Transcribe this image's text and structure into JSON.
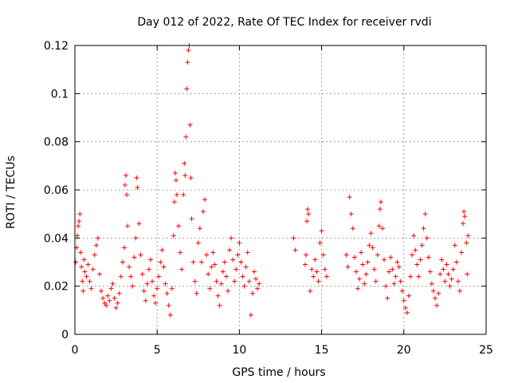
{
  "chart_data": {
    "type": "scatter",
    "title": "Day 012 of 2022, Rate Of TEC Index for receiver rvdi",
    "xlabel": "GPS time / hours",
    "ylabel": "ROTI / TECUs",
    "xlim": [
      0,
      25
    ],
    "ylim": [
      0,
      0.12
    ],
    "xticks": [
      0,
      5,
      10,
      15,
      20,
      25
    ],
    "xtick_labels": [
      "0",
      "5",
      "10",
      "15",
      "20",
      "25"
    ],
    "yticks": [
      0,
      0.02,
      0.04,
      0.06,
      0.08,
      0.1,
      0.12
    ],
    "ytick_labels": [
      "0",
      "0.02",
      "0.04",
      "0.06",
      "0.08",
      "0.1",
      "0.12"
    ],
    "grid": true,
    "marker": "+",
    "marker_color": "#ff0000",
    "series": [
      {
        "name": "ROTI",
        "points": [
          [
            0.05,
            0.03
          ],
          [
            0.1,
            0.036
          ],
          [
            0.15,
            0.041
          ],
          [
            0.2,
            0.045
          ],
          [
            0.25,
            0.047
          ],
          [
            0.3,
            0.05
          ],
          [
            0.35,
            0.034
          ],
          [
            0.4,
            0.028
          ],
          [
            0.45,
            0.022
          ],
          [
            0.5,
            0.018
          ],
          [
            0.55,
            0.031
          ],
          [
            0.6,
            0.026
          ],
          [
            0.7,
            0.024
          ],
          [
            0.8,
            0.029
          ],
          [
            0.9,
            0.022
          ],
          [
            1.0,
            0.019
          ],
          [
            1.1,
            0.027
          ],
          [
            1.2,
            0.033
          ],
          [
            1.3,
            0.037
          ],
          [
            1.4,
            0.04
          ],
          [
            1.5,
            0.025
          ],
          [
            1.6,
            0.018
          ],
          [
            1.7,
            0.015
          ],
          [
            1.8,
            0.013
          ],
          [
            1.9,
            0.012
          ],
          [
            2.0,
            0.016
          ],
          [
            2.1,
            0.014
          ],
          [
            2.2,
            0.019
          ],
          [
            2.3,
            0.021
          ],
          [
            2.4,
            0.015
          ],
          [
            2.5,
            0.011
          ],
          [
            2.6,
            0.013
          ],
          [
            2.7,
            0.017
          ],
          [
            2.8,
            0.024
          ],
          [
            2.9,
            0.03
          ],
          [
            3.0,
            0.036
          ],
          [
            3.05,
            0.062
          ],
          [
            3.1,
            0.066
          ],
          [
            3.15,
            0.058
          ],
          [
            3.2,
            0.045
          ],
          [
            3.3,
            0.028
          ],
          [
            3.4,
            0.024
          ],
          [
            3.5,
            0.02
          ],
          [
            3.6,
            0.032
          ],
          [
            3.7,
            0.04
          ],
          [
            3.75,
            0.065
          ],
          [
            3.8,
            0.061
          ],
          [
            3.9,
            0.046
          ],
          [
            4.0,
            0.033
          ],
          [
            4.1,
            0.025
          ],
          [
            4.2,
            0.018
          ],
          [
            4.3,
            0.014
          ],
          [
            4.4,
            0.021
          ],
          [
            4.5,
            0.027
          ],
          [
            4.6,
            0.031
          ],
          [
            4.7,
            0.022
          ],
          [
            4.8,
            0.016
          ],
          [
            4.9,
            0.013
          ],
          [
            5.0,
            0.019
          ],
          [
            5.1,
            0.024
          ],
          [
            5.2,
            0.03
          ],
          [
            5.3,
            0.035
          ],
          [
            5.4,
            0.028
          ],
          [
            5.5,
            0.021
          ],
          [
            5.6,
            0.017
          ],
          [
            5.7,
            0.012
          ],
          [
            5.8,
            0.008
          ],
          [
            5.9,
            0.019
          ],
          [
            6.0,
            0.041
          ],
          [
            6.05,
            0.055
          ],
          [
            6.1,
            0.067
          ],
          [
            6.15,
            0.064
          ],
          [
            6.2,
            0.058
          ],
          [
            6.3,
            0.045
          ],
          [
            6.4,
            0.034
          ],
          [
            6.5,
            0.027
          ],
          [
            6.6,
            0.058
          ],
          [
            6.65,
            0.071
          ],
          [
            6.7,
            0.066
          ],
          [
            6.75,
            0.082
          ],
          [
            6.8,
            0.102
          ],
          [
            6.85,
            0.113
          ],
          [
            6.9,
            0.118
          ],
          [
            6.95,
            0.12
          ],
          [
            7.0,
            0.087
          ],
          [
            7.05,
            0.065
          ],
          [
            7.1,
            0.048
          ],
          [
            7.2,
            0.03
          ],
          [
            7.3,
            0.022
          ],
          [
            7.4,
            0.017
          ],
          [
            7.5,
            0.038
          ],
          [
            7.6,
            0.044
          ],
          [
            7.7,
            0.03
          ],
          [
            7.8,
            0.051
          ],
          [
            7.9,
            0.056
          ],
          [
            8.0,
            0.033
          ],
          [
            8.1,
            0.025
          ],
          [
            8.2,
            0.019
          ],
          [
            8.3,
            0.028
          ],
          [
            8.4,
            0.034
          ],
          [
            8.5,
            0.029
          ],
          [
            8.6,
            0.022
          ],
          [
            8.7,
            0.016
          ],
          [
            8.8,
            0.012
          ],
          [
            8.9,
            0.021
          ],
          [
            9.0,
            0.026
          ],
          [
            9.1,
            0.03
          ],
          [
            9.2,
            0.024
          ],
          [
            9.3,
            0.018
          ],
          [
            9.4,
            0.035
          ],
          [
            9.5,
            0.04
          ],
          [
            9.6,
            0.031
          ],
          [
            9.7,
            0.022
          ],
          [
            9.8,
            0.027
          ],
          [
            9.9,
            0.033
          ],
          [
            10.0,
            0.038
          ],
          [
            10.1,
            0.03
          ],
          [
            10.2,
            0.024
          ],
          [
            10.3,
            0.02
          ],
          [
            10.4,
            0.028
          ],
          [
            10.5,
            0.034
          ],
          [
            10.6,
            0.022
          ],
          [
            10.7,
            0.008
          ],
          [
            10.8,
            0.017
          ],
          [
            10.9,
            0.026
          ],
          [
            11.0,
            0.023
          ],
          [
            11.1,
            0.019
          ],
          [
            11.2,
            0.021
          ],
          [
            13.3,
            0.04
          ],
          [
            13.4,
            0.035
          ],
          [
            14.0,
            0.029
          ],
          [
            14.05,
            0.033
          ],
          [
            14.1,
            0.047
          ],
          [
            14.15,
            0.052
          ],
          [
            14.2,
            0.05
          ],
          [
            14.3,
            0.018
          ],
          [
            14.4,
            0.027
          ],
          [
            14.5,
            0.024
          ],
          [
            14.6,
            0.031
          ],
          [
            14.7,
            0.026
          ],
          [
            14.8,
            0.022
          ],
          [
            14.9,
            0.038
          ],
          [
            15.0,
            0.043
          ],
          [
            15.1,
            0.033
          ],
          [
            15.2,
            0.027
          ],
          [
            15.3,
            0.024
          ],
          [
            16.5,
            0.033
          ],
          [
            16.6,
            0.028
          ],
          [
            16.7,
            0.057
          ],
          [
            16.8,
            0.05
          ],
          [
            16.9,
            0.044
          ],
          [
            17.0,
            0.032
          ],
          [
            17.1,
            0.026
          ],
          [
            17.2,
            0.019
          ],
          [
            17.3,
            0.023
          ],
          [
            17.4,
            0.034
          ],
          [
            17.5,
            0.029
          ],
          [
            17.6,
            0.021
          ],
          [
            17.7,
            0.025
          ],
          [
            17.8,
            0.03
          ],
          [
            17.9,
            0.037
          ],
          [
            18.0,
            0.042
          ],
          [
            18.1,
            0.036
          ],
          [
            18.2,
            0.027
          ],
          [
            18.3,
            0.022
          ],
          [
            18.4,
            0.033
          ],
          [
            18.5,
            0.045
          ],
          [
            18.55,
            0.052
          ],
          [
            18.6,
            0.055
          ],
          [
            18.7,
            0.044
          ],
          [
            18.8,
            0.031
          ],
          [
            18.9,
            0.02
          ],
          [
            19.0,
            0.015
          ],
          [
            19.1,
            0.026
          ],
          [
            19.2,
            0.032
          ],
          [
            19.3,
            0.027
          ],
          [
            19.4,
            0.021
          ],
          [
            19.5,
            0.024
          ],
          [
            19.6,
            0.03
          ],
          [
            19.7,
            0.028
          ],
          [
            19.8,
            0.022
          ],
          [
            19.9,
            0.018
          ],
          [
            20.0,
            0.014
          ],
          [
            20.1,
            0.011
          ],
          [
            20.2,
            0.009
          ],
          [
            20.3,
            0.016
          ],
          [
            20.4,
            0.024
          ],
          [
            20.5,
            0.033
          ],
          [
            20.6,
            0.041
          ],
          [
            20.7,
            0.035
          ],
          [
            20.8,
            0.029
          ],
          [
            20.9,
            0.024
          ],
          [
            21.0,
            0.031
          ],
          [
            21.1,
            0.037
          ],
          [
            21.2,
            0.044
          ],
          [
            21.3,
            0.05
          ],
          [
            21.4,
            0.04
          ],
          [
            21.5,
            0.032
          ],
          [
            21.6,
            0.026
          ],
          [
            21.7,
            0.021
          ],
          [
            21.8,
            0.018
          ],
          [
            21.9,
            0.015
          ],
          [
            22.0,
            0.012
          ],
          [
            22.1,
            0.017
          ],
          [
            22.2,
            0.025
          ],
          [
            22.3,
            0.031
          ],
          [
            22.4,
            0.027
          ],
          [
            22.5,
            0.022
          ],
          [
            22.6,
            0.029
          ],
          [
            22.7,
            0.025
          ],
          [
            22.8,
            0.02
          ],
          [
            22.9,
            0.023
          ],
          [
            23.0,
            0.027
          ],
          [
            23.1,
            0.037
          ],
          [
            23.2,
            0.03
          ],
          [
            23.3,
            0.022
          ],
          [
            23.4,
            0.018
          ],
          [
            23.5,
            0.034
          ],
          [
            23.6,
            0.046
          ],
          [
            23.65,
            0.051
          ],
          [
            23.7,
            0.049
          ],
          [
            23.8,
            0.038
          ],
          [
            23.85,
            0.025
          ],
          [
            23.9,
            0.041
          ]
        ]
      }
    ]
  }
}
